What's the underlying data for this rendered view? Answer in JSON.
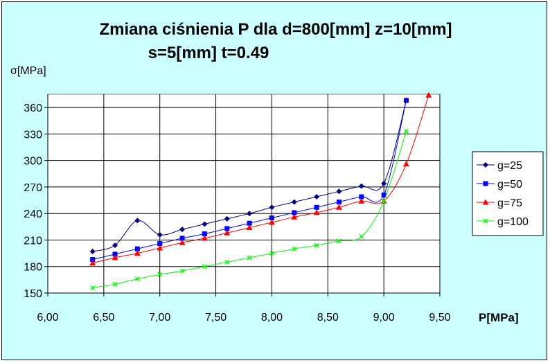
{
  "chart_data": {
    "type": "line",
    "title_line1": "Zmiana ciśnienia P dla d=800[mm] z=10[mm]",
    "title_line2": "s=5[mm] t=0.49",
    "ylabel": "σ[MPa]",
    "xlabel": "P[MPa]",
    "xlim": [
      6.0,
      9.5
    ],
    "ylim": [
      150,
      375
    ],
    "x_ticks": [
      "6,00",
      "6,50",
      "7,00",
      "7,50",
      "8,00",
      "8,50",
      "9,00",
      "9,50"
    ],
    "x_tick_values": [
      6.0,
      6.5,
      7.0,
      7.5,
      8.0,
      8.5,
      9.0,
      9.5
    ],
    "y_ticks": [
      "150",
      "180",
      "210",
      "240",
      "270",
      "300",
      "330",
      "360"
    ],
    "y_tick_values": [
      150,
      180,
      210,
      240,
      270,
      300,
      330,
      360
    ],
    "grid": true,
    "legend_position": "right",
    "plot_background": "#ffffff",
    "chart_background": "#ccffff",
    "series": [
      {
        "name": "g=25",
        "color": "#000080",
        "marker": "diamond",
        "x": [
          6.4,
          6.6,
          6.8,
          7.0,
          7.2,
          7.4,
          7.6,
          7.8,
          8.0,
          8.2,
          8.4,
          8.6,
          8.8,
          9.0,
          9.2
        ],
        "y": [
          197,
          204,
          232,
          216,
          222,
          228,
          234,
          240,
          247,
          253,
          259,
          265,
          271,
          274,
          368
        ]
      },
      {
        "name": "g=50",
        "color": "#0000ff",
        "marker": "square",
        "x": [
          6.4,
          6.6,
          6.8,
          7.0,
          7.2,
          7.4,
          7.6,
          7.8,
          8.0,
          8.2,
          8.4,
          8.6,
          8.8,
          9.0,
          9.2
        ],
        "y": [
          188,
          194,
          200,
          206,
          212,
          217,
          223,
          229,
          235,
          241,
          247,
          253,
          259,
          261,
          368
        ]
      },
      {
        "name": "g=75",
        "color": "#ff0000",
        "marker": "triangle",
        "x": [
          6.4,
          6.6,
          6.8,
          7.0,
          7.2,
          7.4,
          7.6,
          7.8,
          8.0,
          8.2,
          8.4,
          8.6,
          8.8,
          9.0,
          9.2,
          9.4
        ],
        "y": [
          184,
          190,
          195,
          201,
          207,
          212,
          218,
          224,
          230,
          236,
          241,
          247,
          254,
          254,
          296,
          374
        ]
      },
      {
        "name": "g=100",
        "color": "#00ff00",
        "marker": "x",
        "x": [
          6.4,
          6.6,
          6.8,
          7.0,
          7.2,
          7.4,
          7.6,
          7.8,
          8.0,
          8.2,
          8.4,
          8.6,
          8.8,
          9.0,
          9.2
        ],
        "y": [
          156,
          160,
          166,
          171,
          175,
          180,
          185,
          190,
          195,
          200,
          204,
          209,
          214,
          254,
          333
        ]
      }
    ]
  }
}
